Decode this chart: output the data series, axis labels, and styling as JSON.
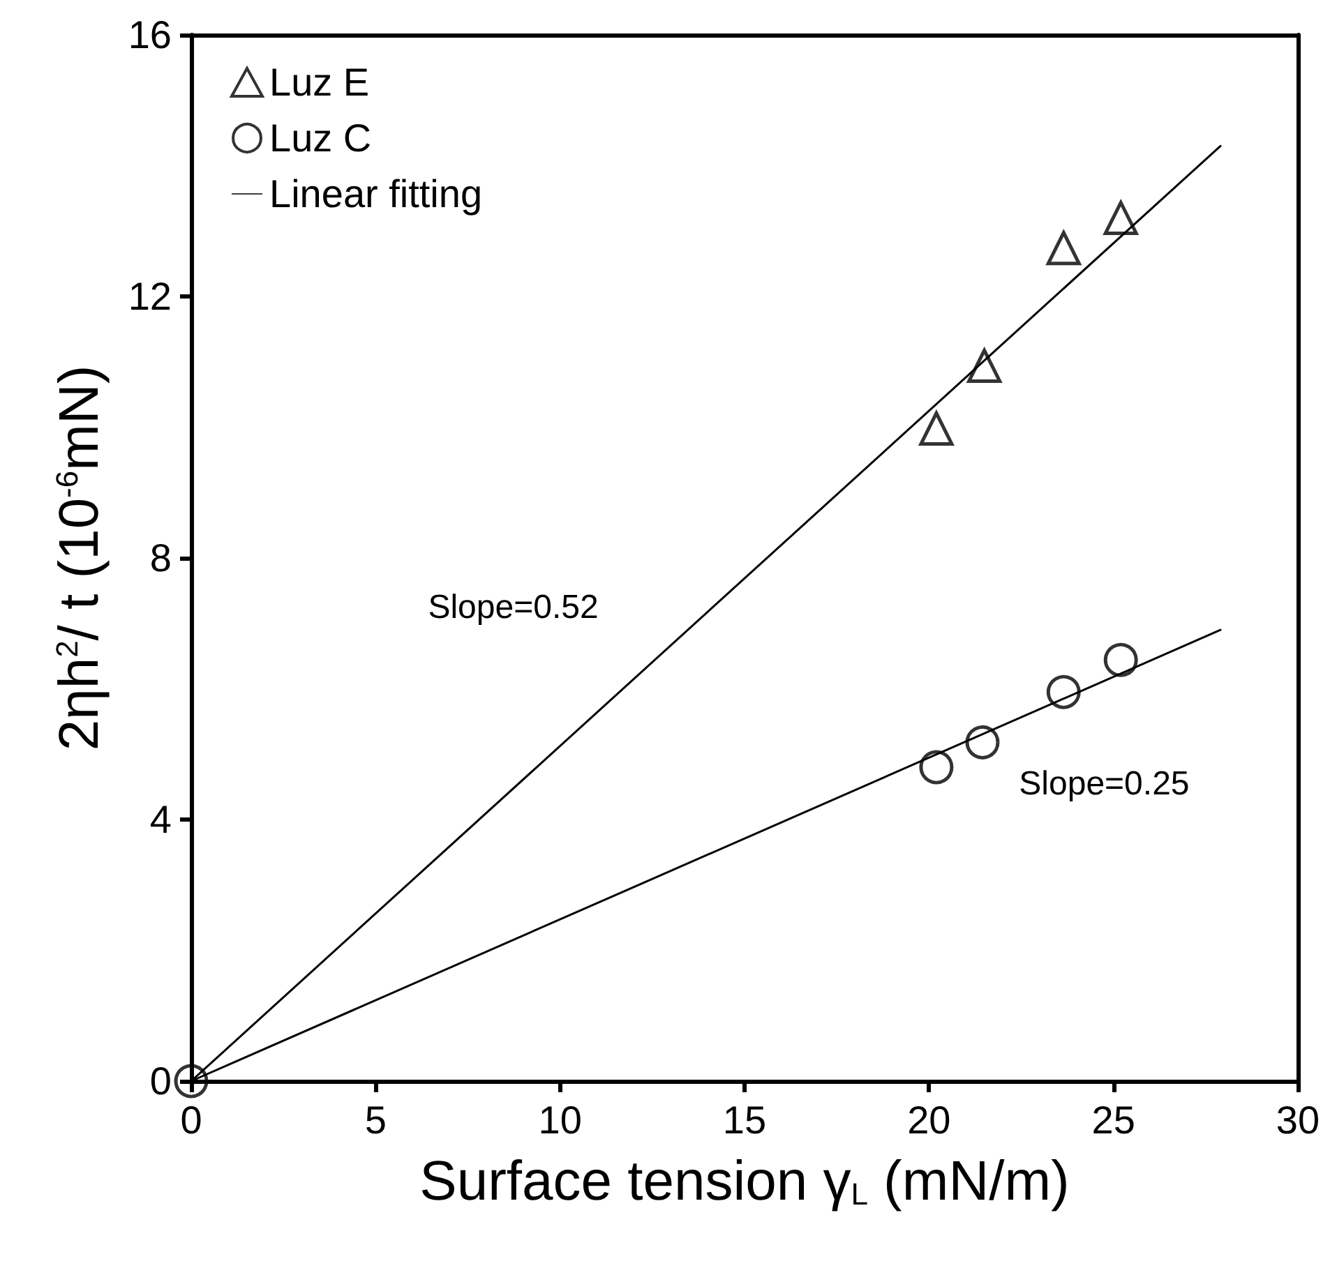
{
  "chart_data": {
    "type": "scatter",
    "xlabel": "Surface tension γ$_{L}$ (mN/m)",
    "ylabel": "2ηh$^{2}$/ t (10$^{-6}$mN)",
    "xlim": [
      0,
      30
    ],
    "xticks": [
      0,
      5,
      10,
      15,
      20,
      25,
      30
    ],
    "ylim": [
      0,
      16
    ],
    "yticks": [
      0,
      4,
      8,
      12,
      16
    ],
    "grid": false,
    "legend": "top left",
    "series": [
      {
        "name": "Luz E",
        "color": "#000000",
        "marker": "triangle",
        "x": [
          20.2,
          21.5,
          23.65,
          25.2
        ],
        "values": [
          9.98,
          10.94,
          12.74,
          13.2
        ]
      },
      {
        "name": "Luz C",
        "color": "#000000",
        "marker": "circle",
        "x": [
          0,
          20.2,
          21.45,
          23.65,
          25.2
        ],
        "values": [
          0,
          4.8,
          5.18,
          5.95,
          6.44
        ]
      },
      {
        "name": "Linear fitting",
        "type": "line",
        "color": "#000000",
        "marker": "none",
        "line_style": "solid",
        "x": [
          0,
          27.9
        ],
        "values": [
          0,
          14.3
        ]
      },
      {
        "type": "line",
        "color": "#000000",
        "marker": "none",
        "line_style": "solid",
        "x": [
          0,
          27.9
        ],
        "values": [
          0,
          6.9
        ]
      }
    ],
    "annotations": [
      "Slope=0.52",
      "Slope=0.25"
    ]
  }
}
